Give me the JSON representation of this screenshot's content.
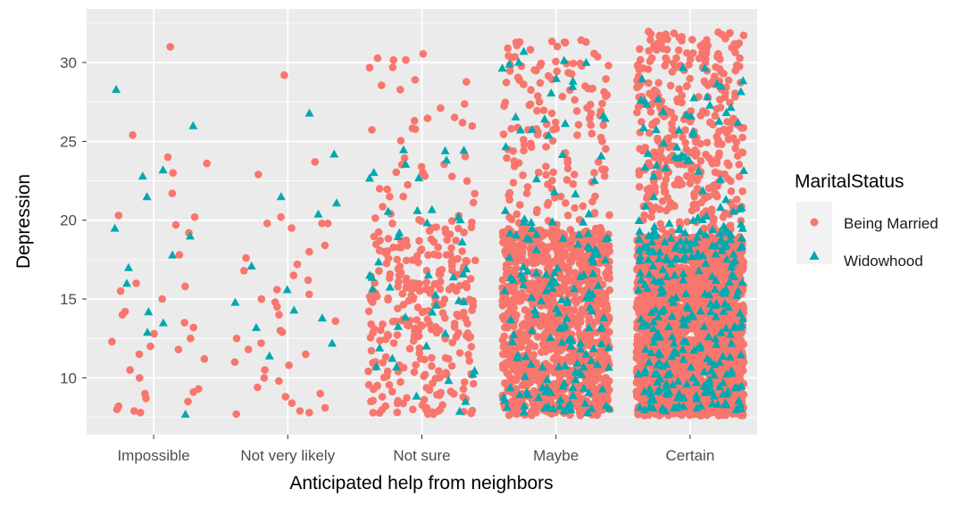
{
  "chart_data": {
    "type": "scatter",
    "subtype": "jitter",
    "title": "",
    "xlabel": "Anticipated help from neighbors",
    "ylabel": "Depression",
    "categories": [
      "Impossible",
      "Not very likely",
      "Not sure",
      "Maybe",
      "Certain"
    ],
    "yticks": [
      10,
      15,
      20,
      25,
      30
    ],
    "ylim": [
      6.4,
      33.4
    ],
    "grid": true,
    "legend": {
      "title": "MaritalStatus",
      "placement": "right",
      "entries": [
        {
          "label": "Being Married",
          "shape": "circle",
          "color": "#F8766D"
        },
        {
          "label": "Widowhood",
          "shape": "triangle",
          "color": "#00BFC4"
        }
      ]
    },
    "series": [
      {
        "name": "Being Married",
        "points_by_category": [
          [
            31,
            25.4,
            24,
            23.6,
            23,
            21.7,
            20.3,
            20.2,
            19.7,
            19.2,
            17.8,
            16,
            15.8,
            15.5,
            15,
            14.2,
            14,
            13.5,
            13.2,
            12.5,
            12.3,
            12,
            11.8,
            11.5,
            10.5,
            10,
            9.3,
            9.1,
            9,
            8.7,
            8.5,
            8.2,
            8,
            7.9,
            7.8,
            12.8,
            11.2
          ],
          [
            29.2,
            23.7,
            22.9,
            20.2,
            19.8,
            19.8,
            19.8,
            19.5,
            18.4,
            18,
            17.6,
            17.2,
            16.8,
            16.2,
            15.6,
            15.3,
            15,
            14.8,
            14.5,
            14,
            13.6,
            13,
            12.5,
            12.2,
            11.8,
            11.5,
            11,
            10.5,
            10,
            9.8,
            9.4,
            9,
            8.8,
            8.4,
            8.1,
            7.9,
            7.8,
            7.7,
            16.5,
            12.9,
            10.8
          ],
          {
            "n": 320,
            "min": 7.6,
            "core_max": 20,
            "tail_max": 31,
            "tail_share": 0.12
          },
          {
            "n": 1300,
            "min": 7.6,
            "core_max": 19.5,
            "tail_max": 31.6,
            "tail_share": 0.12
          },
          {
            "n": 2600,
            "min": 7.6,
            "core_max": 19,
            "tail_max": 32,
            "tail_share": 0.14
          }
        ]
      },
      {
        "name": "Widowhood",
        "points_by_category": [
          [
            28.3,
            26,
            23.2,
            22.8,
            21.5,
            19.5,
            19,
            17.8,
            17,
            16,
            14.2,
            13.5,
            12.9,
            7.7
          ],
          [
            26.8,
            24.2,
            21.5,
            21.1,
            20.4,
            17.1,
            15.6,
            14.8,
            14.3,
            13.8,
            13.2,
            12.2,
            11.4
          ],
          {
            "n": 45,
            "min": 7.8,
            "core_max": 20,
            "tail_max": 24.5,
            "tail_share": 0.3
          },
          {
            "n": 170,
            "min": 7.8,
            "core_max": 20,
            "tail_max": 30.8,
            "tail_share": 0.15
          },
          {
            "n": 330,
            "min": 7.8,
            "core_max": 20,
            "tail_max": 29.8,
            "tail_share": 0.15
          }
        ]
      }
    ]
  }
}
